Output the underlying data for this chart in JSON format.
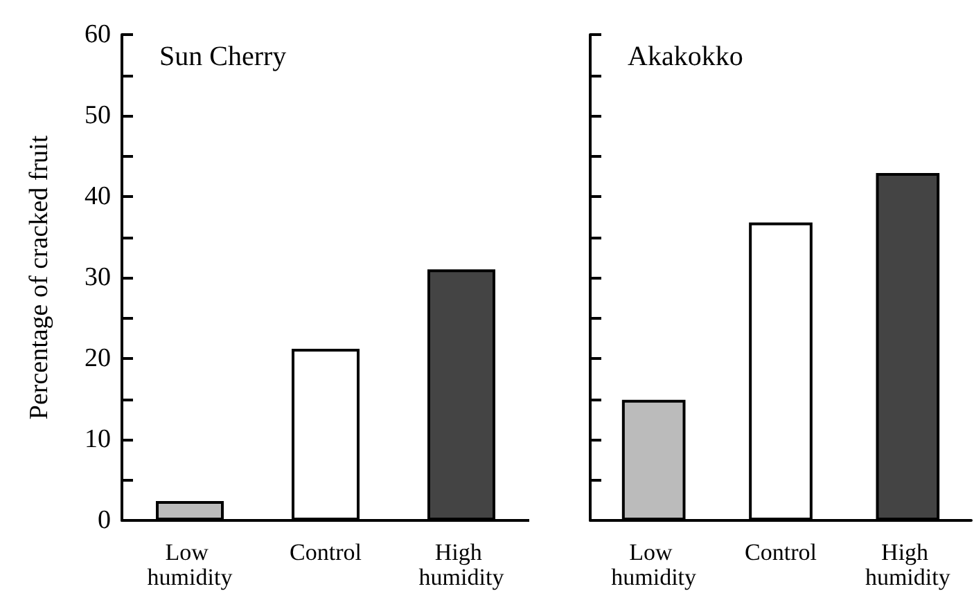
{
  "chart_data": [
    {
      "type": "bar",
      "title": "Sun Cherry",
      "ylabel": "Percentage of cracked fruit",
      "categories": [
        "Low humidity",
        "Control",
        "High humidity"
      ],
      "values": [
        2.4,
        21.2,
        31
      ],
      "colors": [
        "#bbbbbb",
        "#ffffff",
        "#444444"
      ],
      "ylim": [
        0,
        60
      ],
      "yticks": [
        0,
        {
          "value": 5,
          "label": null
        },
        10,
        {
          "value": 15,
          "label": null
        },
        20,
        {
          "value": 25,
          "label": null
        },
        30,
        {
          "value": 35,
          "label": null
        },
        40,
        {
          "value": 45,
          "label": null
        },
        50,
        {
          "value": 55,
          "label": null
        },
        60
      ]
    },
    {
      "type": "bar",
      "title": "Akakokko",
      "categories": [
        "Low humidity",
        "Control",
        "High humidity"
      ],
      "values": [
        14.9,
        36.8,
        42.9
      ],
      "colors": [
        "#bbbbbb",
        "#ffffff",
        "#444444"
      ],
      "ylim": [
        0,
        60
      ],
      "yticks": [
        0,
        {
          "value": 5,
          "label": null
        },
        10,
        {
          "value": 15,
          "label": null
        },
        20,
        {
          "value": 25,
          "label": null
        },
        30,
        {
          "value": 35,
          "label": null
        },
        40,
        {
          "value": 45,
          "label": null
        },
        50,
        {
          "value": 55,
          "label": null
        },
        60
      ],
      "tick_labels": "x"
    }
  ]
}
